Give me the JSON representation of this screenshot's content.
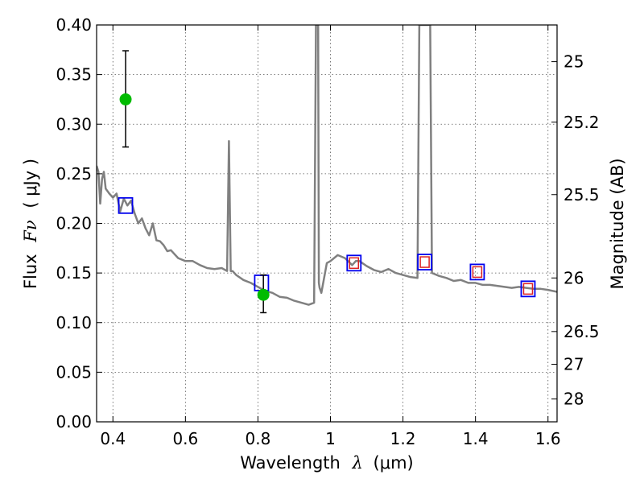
{
  "chart_data": {
    "type": "scatter",
    "title": "",
    "xlabel_prefix": "Wavelength",
    "xlabel_symbol": "λ",
    "xlabel_unit": "(μm)",
    "ylabel_prefix": "Flux",
    "ylabel_symbol": "Fν",
    "ylabel_unit": "( μJy )",
    "y2label": "Magnitude (AB)",
    "xlim": [
      0.355,
      1.625
    ],
    "ylim": [
      0.0,
      0.4
    ],
    "grid": true,
    "x_ticks": [
      0.4,
      0.6,
      0.8,
      1.0,
      1.2,
      1.4,
      1.6
    ],
    "x_tick_labels": [
      "0.4",
      "0.6",
      "0.8",
      "1",
      "1.2",
      "1.4",
      "1.6"
    ],
    "y_ticks": [
      0.0,
      0.05,
      0.1,
      0.15,
      0.2,
      0.25,
      0.3,
      0.35,
      0.4
    ],
    "y_tick_labels": [
      "0.00",
      "0.05",
      "0.10",
      "0.15",
      "0.20",
      "0.25",
      "0.30",
      "0.35",
      "0.40"
    ],
    "y2_ticks": [
      {
        "label": "25",
        "flux": 0.363
      },
      {
        "label": "25.2",
        "flux": 0.302
      },
      {
        "label": "25.5",
        "flux": 0.229
      },
      {
        "label": "26",
        "flux": 0.145
      },
      {
        "label": "26.5",
        "flux": 0.091
      },
      {
        "label": "27",
        "flux": 0.058
      },
      {
        "label": "28",
        "flux": 0.023
      }
    ],
    "colors": {
      "model": "#808080",
      "observed": "#00bb00",
      "errorbar": "#000000",
      "model_box": "#0000ee",
      "model_box_inner": "#dd2222",
      "grid": "#555555"
    },
    "series": [
      {
        "type": "line",
        "x": [
          0.355,
          0.36,
          0.365,
          0.37,
          0.375,
          0.38,
          0.39,
          0.4,
          0.41,
          0.42,
          0.43,
          0.44,
          0.45,
          0.46,
          0.47,
          0.48,
          0.49,
          0.5,
          0.51,
          0.52,
          0.53,
          0.54,
          0.55,
          0.56,
          0.58,
          0.6,
          0.62,
          0.64,
          0.66,
          0.68,
          0.7,
          0.715,
          0.72,
          0.725,
          0.73,
          0.74,
          0.76,
          0.78,
          0.8,
          0.82,
          0.84,
          0.86,
          0.88,
          0.9,
          0.92,
          0.94,
          0.955,
          0.96,
          0.963,
          0.966,
          0.968,
          0.97,
          0.975,
          0.98,
          0.99,
          1.0,
          1.02,
          1.04,
          1.06,
          1.07,
          1.08,
          1.1,
          1.12,
          1.14,
          1.16,
          1.18,
          1.2,
          1.22,
          1.24,
          1.245,
          1.25,
          1.255,
          1.26,
          1.265,
          1.27,
          1.275,
          1.28,
          1.3,
          1.32,
          1.34,
          1.36,
          1.38,
          1.4,
          1.42,
          1.44,
          1.46,
          1.48,
          1.5,
          1.52,
          1.54,
          1.56,
          1.58,
          1.6,
          1.625
        ],
        "y": [
          0.258,
          0.252,
          0.22,
          0.245,
          0.252,
          0.235,
          0.23,
          0.226,
          0.23,
          0.212,
          0.225,
          0.218,
          0.223,
          0.21,
          0.2,
          0.205,
          0.195,
          0.188,
          0.2,
          0.183,
          0.182,
          0.178,
          0.172,
          0.173,
          0.165,
          0.162,
          0.162,
          0.158,
          0.155,
          0.154,
          0.155,
          0.152,
          0.283,
          0.152,
          0.152,
          0.148,
          0.143,
          0.14,
          0.136,
          0.132,
          0.13,
          0.126,
          0.125,
          0.122,
          0.12,
          0.118,
          0.12,
          0.4,
          0.4,
          0.4,
          0.14,
          0.135,
          0.13,
          0.14,
          0.16,
          0.162,
          0.168,
          0.165,
          0.158,
          0.162,
          0.162,
          0.157,
          0.153,
          0.151,
          0.154,
          0.15,
          0.148,
          0.146,
          0.145,
          0.4,
          0.4,
          0.4,
          0.4,
          0.4,
          0.4,
          0.4,
          0.15,
          0.147,
          0.145,
          0.142,
          0.143,
          0.14,
          0.14,
          0.138,
          0.138,
          0.137,
          0.136,
          0.135,
          0.136,
          0.135,
          0.134,
          0.134,
          0.133,
          0.131
        ]
      },
      {
        "type": "scatter",
        "x": [
          0.435,
          0.815
        ],
        "y": [
          0.325,
          0.128
        ],
        "yerr_low": [
          0.277,
          0.11
        ],
        "yerr_high": [
          0.374,
          0.148
        ]
      },
      {
        "type": "scatter",
        "x": [
          0.435,
          0.81,
          1.065,
          1.26,
          1.405,
          1.545
        ],
        "y": [
          0.218,
          0.14,
          0.16,
          0.161,
          0.151,
          0.134
        ]
      },
      {
        "type": "scatter",
        "x": [
          1.065,
          1.26,
          1.405,
          1.545
        ],
        "y": [
          0.16,
          0.161,
          0.151,
          0.134
        ]
      }
    ]
  }
}
